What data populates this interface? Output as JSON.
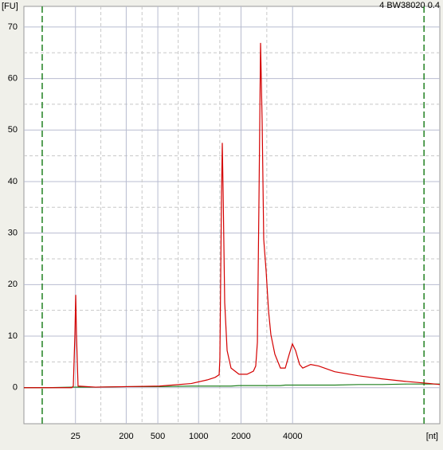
{
  "chart_data": {
    "type": "line",
    "title": "4 BW38020 0.4",
    "ylabel": "[FU]",
    "xlabel": "[nt]",
    "x": [
      19.0,
      21.87,
      24.75,
      24.94,
      25.13,
      25.23,
      25.32,
      25.51,
      27.62,
      31.45,
      35.28,
      39.11,
      41.03,
      41.99,
      42.47,
      42.56,
      42.75,
      42.85,
      42.95,
      43.14,
      43.43,
      43.9,
      44.86,
      45.82,
      46.59,
      46.87,
      47.07,
      47.26,
      47.45,
      47.64,
      47.83,
      48.12,
      48.41,
      48.69,
      49.17,
      49.84,
      50.42,
      50.9,
      51.28,
      51.66,
      52.14,
      52.52,
      53.48,
      54.44,
      56.36,
      59.23,
      62.1,
      64.98,
      67.85,
      69.0
    ],
    "series": [
      {
        "color": "#d40000",
        "values": [
          0,
          0,
          0,
          0.3,
          10.3,
          18.0,
          10.3,
          0.3,
          0.1,
          0.2,
          0.3,
          0.8,
          1.5,
          2.0,
          2.5,
          5.7,
          36.5,
          47.5,
          38.0,
          16.5,
          7.2,
          3.8,
          2.6,
          2.6,
          3.2,
          4.2,
          8.8,
          36.5,
          66.9,
          51.8,
          28.8,
          22.6,
          14.9,
          10.3,
          6.5,
          3.8,
          3.8,
          6.5,
          8.5,
          7.2,
          4.5,
          3.8,
          4.5,
          4.2,
          3.1,
          2.3,
          1.7,
          1.2,
          0.8,
          0.6
        ]
      },
      {
        "color": "#208020",
        "values": [
          0,
          0,
          0.1,
          0.1,
          0.1,
          0.1,
          0.1,
          0.1,
          0.1,
          0.2,
          0.2,
          0.3,
          0.3,
          0.3,
          0.3,
          0.3,
          0.3,
          0.3,
          0.3,
          0.3,
          0.3,
          0.3,
          0.4,
          0.4,
          0.4,
          0.4,
          0.4,
          0.4,
          0.4,
          0.4,
          0.4,
          0.4,
          0.4,
          0.4,
          0.4,
          0.4,
          0.5,
          0.5,
          0.5,
          0.5,
          0.5,
          0.5,
          0.5,
          0.5,
          0.5,
          0.6,
          0.6,
          0.7,
          0.7,
          0.7
        ]
      }
    ],
    "marker_lines": [
      21.2,
      67.1
    ],
    "marker_color": "#208020",
    "xlim": [
      19,
      69
    ],
    "ylim": [
      -7,
      74
    ],
    "xticks": [
      {
        "value": 25.2,
        "label": "25"
      },
      {
        "value": 31.3,
        "label": "200"
      },
      {
        "value": 35.1,
        "label": "500"
      },
      {
        "value": 40.0,
        "label": "1000"
      },
      {
        "value": 45.1,
        "label": "2000"
      },
      {
        "value": 51.3,
        "label": "4000"
      }
    ],
    "yticks": [
      0,
      10,
      20,
      30,
      40,
      50,
      60,
      70
    ],
    "grid": true
  }
}
